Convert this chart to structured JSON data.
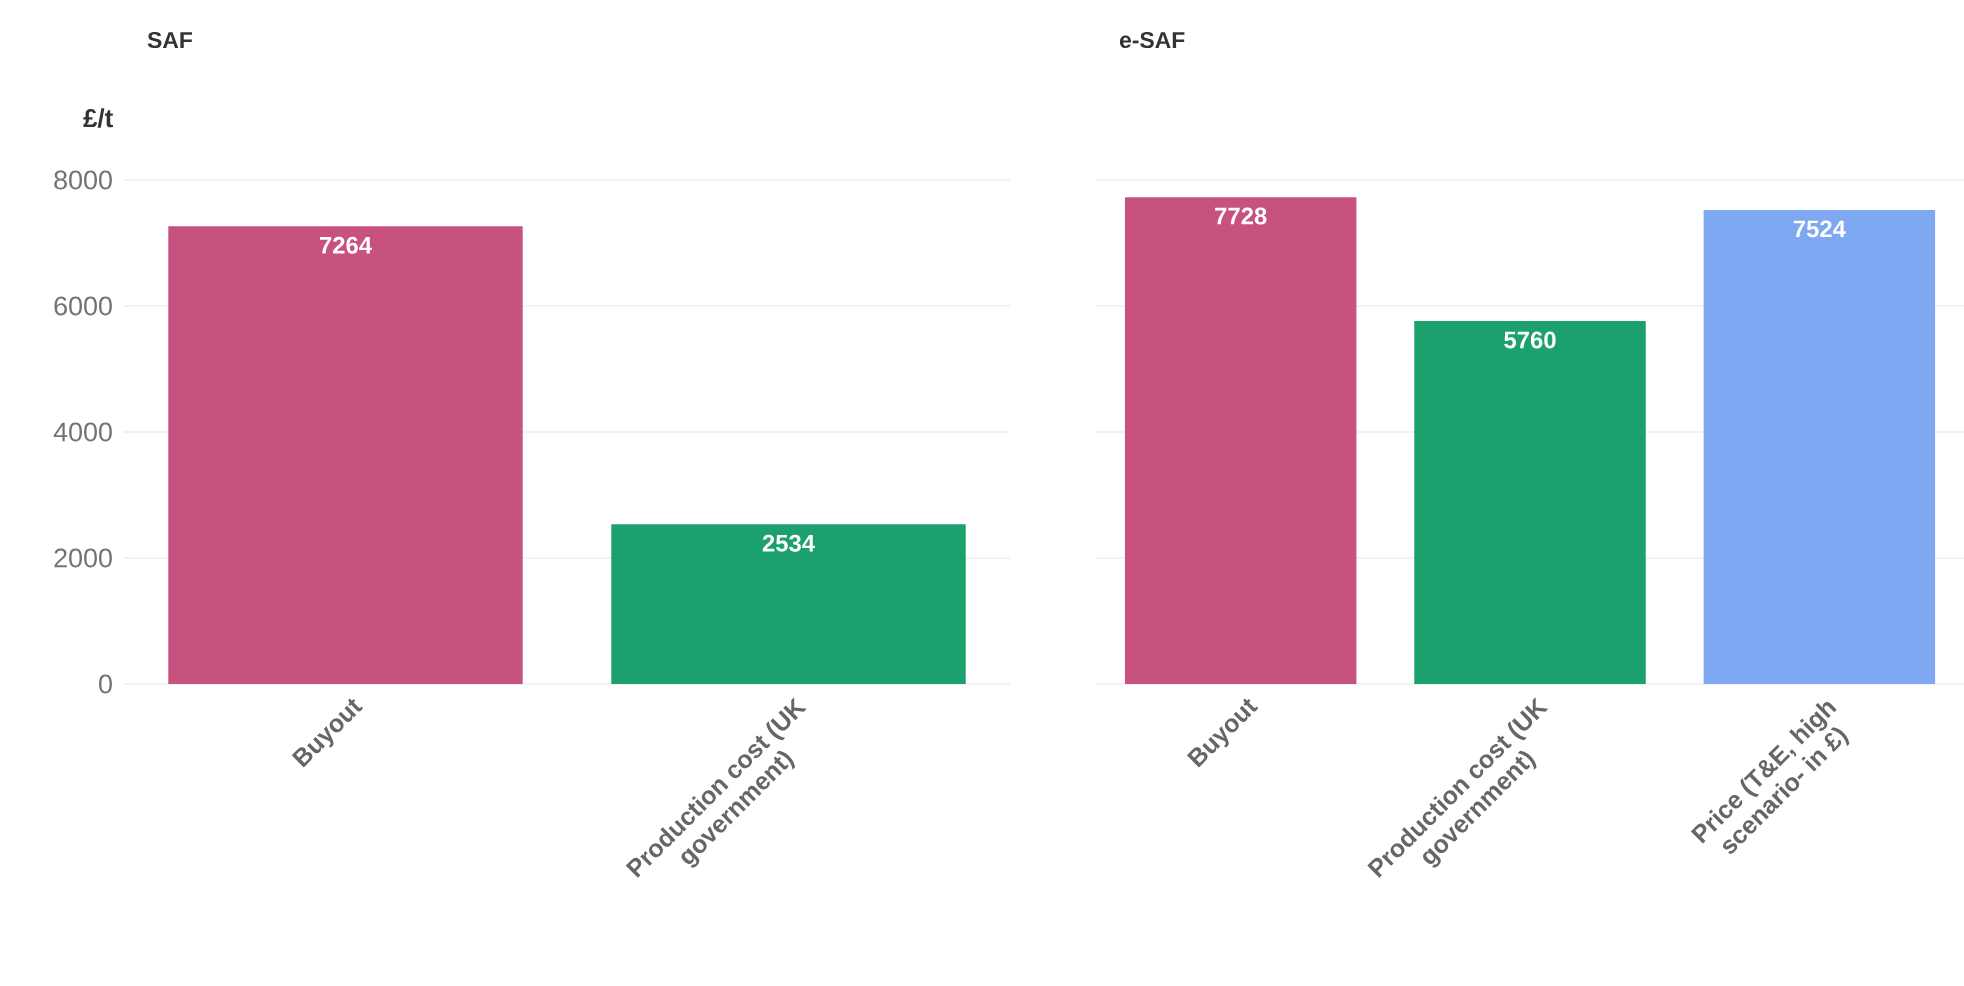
{
  "chart_data": [
    {
      "type": "bar",
      "title": "SAF",
      "ylabel": "£/t",
      "categories": [
        "Buyout",
        "Production cost (UK government)"
      ],
      "values": [
        7264,
        2534
      ],
      "colors": [
        "#c8527f",
        "#1ba06e"
      ],
      "ylim": [
        0,
        8000
      ],
      "yticks": [
        0,
        2000,
        4000,
        6000,
        8000
      ],
      "grid": "y",
      "data_labels": true
    },
    {
      "type": "bar",
      "title": "e-SAF",
      "categories": [
        "Buyout",
        "Production cost (UK government)",
        "Price (T&E, high scenario- in £)"
      ],
      "values": [
        7728,
        5760,
        7524
      ],
      "colors": [
        "#c8527f",
        "#1ba06e",
        "#7fa8f2"
      ],
      "ylim": [
        0,
        8000
      ],
      "yticks": [
        0,
        2000,
        4000,
        6000,
        8000
      ],
      "grid": "y",
      "data_labels": true,
      "tick_labels": "x"
    }
  ]
}
